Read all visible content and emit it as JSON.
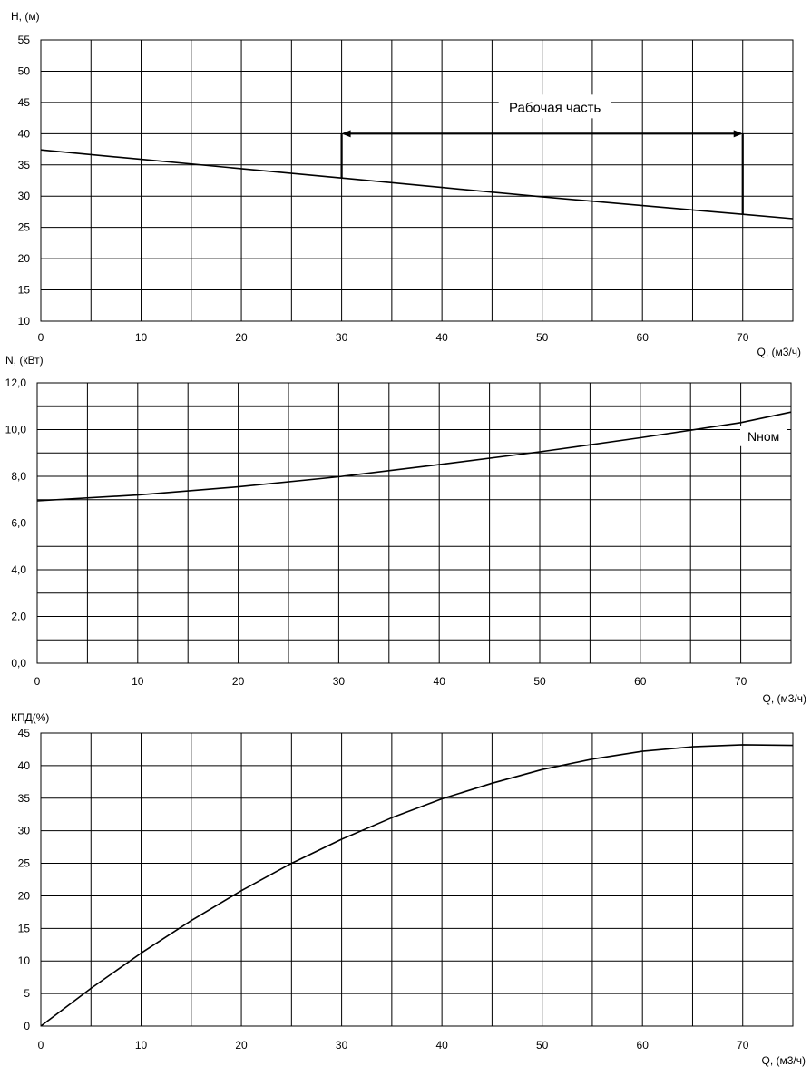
{
  "chart_data": [
    {
      "type": "line",
      "ylabel": "H, (м)",
      "xlabel": "Q, (м3/ч)",
      "xlim": [
        0,
        75
      ],
      "ylim": [
        10,
        55
      ],
      "x_minor_step": 5,
      "y_step": 5,
      "xticks": [
        "0",
        "10",
        "20",
        "30",
        "40",
        "50",
        "60",
        "70"
      ],
      "yticks": [
        "10",
        "15",
        "20",
        "25",
        "30",
        "35",
        "40",
        "45",
        "50",
        "55"
      ],
      "grid": true,
      "series": [
        {
          "x": [
            0,
            10,
            20,
            30,
            40,
            50,
            60,
            70,
            75
          ],
          "y": [
            37.4,
            35.9,
            34.4,
            32.9,
            31.4,
            29.9,
            28.5,
            27.1,
            26.4
          ]
        }
      ],
      "annotation": {
        "text": "Рабочая часть",
        "x_start": 30,
        "x_end": 70,
        "y": 40
      }
    },
    {
      "type": "line",
      "ylabel": "N, (кВт)",
      "xlabel": "Q, (м3/ч)",
      "xlim": [
        0,
        75
      ],
      "ylim": [
        0,
        12
      ],
      "x_minor_step": 5,
      "y_step": 1,
      "xticks": [
        "0",
        "10",
        "20",
        "30",
        "40",
        "50",
        "60",
        "70"
      ],
      "yticks": [
        "0,0",
        "2,0",
        "4,0",
        "6,0",
        "8,0",
        "10,0",
        "12,0"
      ],
      "grid": true,
      "series": [
        {
          "x": [
            0,
            10,
            20,
            30,
            40,
            50,
            60,
            70,
            75
          ],
          "y": [
            6.95,
            7.2,
            7.55,
            7.98,
            8.5,
            9.05,
            9.65,
            10.3,
            10.75
          ]
        }
      ],
      "nominal_line": {
        "label": "Nном",
        "y": 11.0
      }
    },
    {
      "type": "line",
      "ylabel": "КПД(%)",
      "xlabel": "Q, (м3/ч)",
      "xlim": [
        0,
        75
      ],
      "ylim": [
        0,
        45
      ],
      "x_minor_step": 5,
      "y_step": 5,
      "xticks": [
        "0",
        "10",
        "20",
        "30",
        "40",
        "50",
        "60",
        "70"
      ],
      "yticks": [
        "0",
        "5",
        "10",
        "15",
        "20",
        "25",
        "30",
        "35",
        "40",
        "45"
      ],
      "grid": true,
      "series": [
        {
          "x": [
            0,
            5,
            10,
            15,
            20,
            25,
            30,
            35,
            40,
            45,
            50,
            55,
            60,
            65,
            70,
            75
          ],
          "y": [
            0,
            5.8,
            11.2,
            16.2,
            20.8,
            25.0,
            28.7,
            32.0,
            34.9,
            37.3,
            39.4,
            41.0,
            42.2,
            42.9,
            43.2,
            43.1
          ]
        }
      ]
    }
  ]
}
